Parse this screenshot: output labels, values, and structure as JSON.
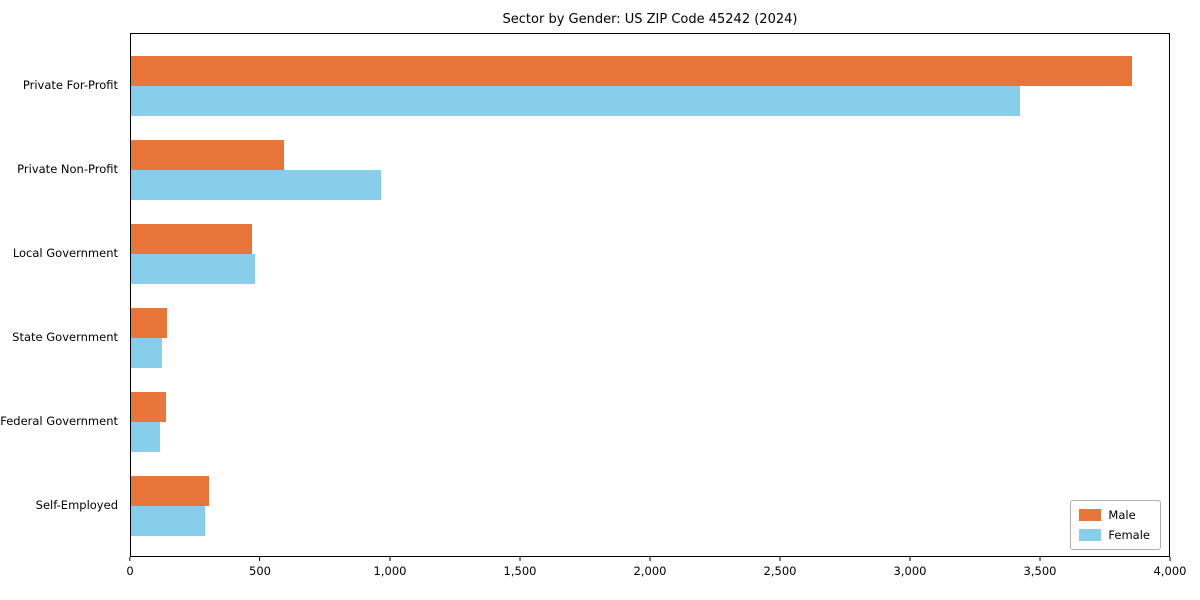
{
  "chart_data": {
    "type": "bar",
    "orientation": "horizontal",
    "title": "Sector by Gender: US ZIP Code 45242 (2024)",
    "categories": [
      "Private For-Profit",
      "Private Non-Profit",
      "Local Government",
      "State Government",
      "Federal Government",
      "Self-Employed"
    ],
    "series": [
      {
        "name": "Male",
        "color": "#e8763a",
        "values": [
          3850,
          590,
          465,
          140,
          135,
          300
        ]
      },
      {
        "name": "Female",
        "color": "#87ceeb",
        "values": [
          3420,
          960,
          475,
          120,
          110,
          285
        ]
      }
    ],
    "xlim": [
      0,
      4000
    ],
    "xticks": [
      0,
      500,
      1000,
      1500,
      2000,
      2500,
      3000,
      3500,
      4000
    ],
    "xtick_labels": [
      "0",
      "500",
      "1,000",
      "1,500",
      "2,000",
      "2,500",
      "3,000",
      "3,500",
      "4,000"
    ],
    "xlabel": "",
    "ylabel": "",
    "grid": false,
    "legend_position": "lower right",
    "legend_entries": [
      "Male",
      "Female"
    ]
  }
}
